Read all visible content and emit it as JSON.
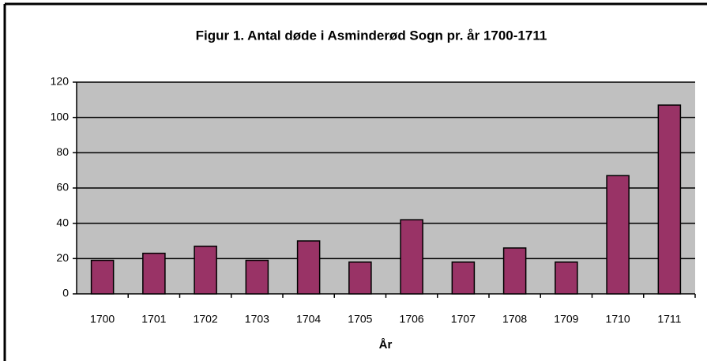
{
  "chart_data": {
    "type": "bar",
    "title": "Figur 1. Antal døde i Asminderød Sogn pr. år 1700-1711",
    "x_label": "År",
    "categories": [
      "1700",
      "1701",
      "1702",
      "1703",
      "1704",
      "1705",
      "1706",
      "1707",
      "1708",
      "1709",
      "1710",
      "1711"
    ],
    "values": [
      19,
      23,
      27,
      19,
      30,
      18,
      42,
      18,
      26,
      18,
      67,
      107
    ],
    "color": "#993366",
    "ylim": [
      0,
      120
    ],
    "yticks": [
      0,
      20,
      40,
      60,
      80,
      100,
      120
    ],
    "grid": true
  }
}
